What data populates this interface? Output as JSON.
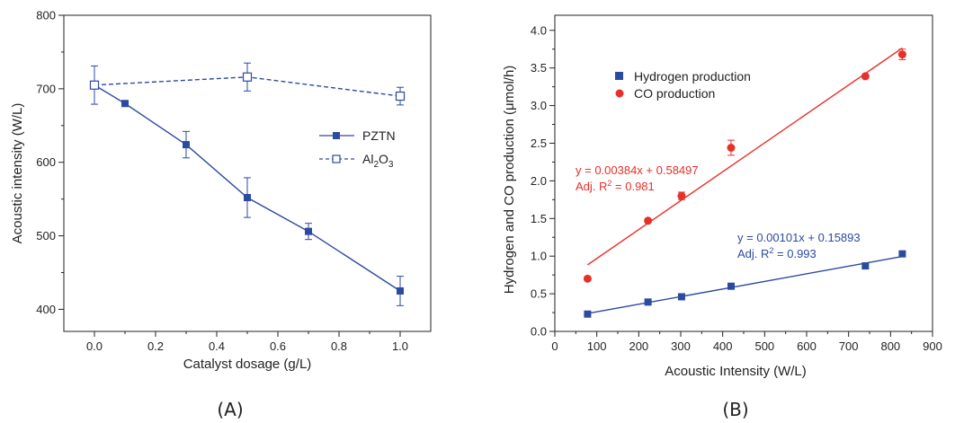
{
  "chart_data": [
    {
      "type": "line",
      "panel_label": "(A)",
      "xlabel": "Catalyst dosage (g/L)",
      "ylabel": "Acoustic intensity (W/L)",
      "xlim": [
        -0.1,
        1.1
      ],
      "ylim": [
        370,
        800
      ],
      "x_ticks": [
        "0.0",
        "0.2",
        "0.4",
        "0.6",
        "0.8",
        "1.0"
      ],
      "y_ticks": [
        "400",
        "500",
        "600",
        "700",
        "800"
      ],
      "legend_position": "right-middle",
      "series": [
        {
          "name": "PZTN",
          "color": "#2c4aa0",
          "line_style": "solid",
          "marker": "filled-square",
          "x": [
            0.0,
            0.1,
            0.3,
            0.5,
            0.7,
            1.0
          ],
          "y": [
            705,
            680,
            624,
            552,
            506,
            425
          ],
          "err": [
            0,
            0,
            18,
            27,
            11,
            20
          ]
        },
        {
          "name": "Al",
          "name_sub": "2",
          "name_tail": "O",
          "name_sub2": "3",
          "color": "#2c4aa0",
          "line_style": "dashed",
          "marker": "open-square",
          "x": [
            0.0,
            0.5,
            1.0
          ],
          "y": [
            705,
            716,
            690
          ],
          "err": [
            26,
            19,
            12
          ]
        }
      ]
    },
    {
      "type": "scatter",
      "panel_label": "(B)",
      "xlabel": "Acoustic Intensity (W/L)",
      "ylabel": "Hydrogen and CO production (μmol/h)",
      "xlim": [
        0,
        900
      ],
      "ylim": [
        0,
        4.2
      ],
      "x_ticks": [
        "0",
        "100",
        "200",
        "300",
        "400",
        "500",
        "600",
        "700",
        "800",
        "900"
      ],
      "y_ticks": [
        "0.0",
        "0.5",
        "1.0",
        "1.5",
        "2.0",
        "2.5",
        "3.0",
        "3.5",
        "4.0"
      ],
      "legend_position": "top-left",
      "series": [
        {
          "name": "Hydrogen production",
          "color": "#2c4aa0",
          "marker": "filled-square",
          "x": [
            78,
            222,
            302,
            420,
            740,
            828
          ],
          "y": [
            0.23,
            0.39,
            0.46,
            0.6,
            0.87,
            1.03
          ],
          "err": [
            0,
            0,
            0,
            0,
            0,
            0
          ],
          "fit": {
            "slope": 0.00101,
            "intercept": 0.15893,
            "x_range": [
              78,
              828
            ]
          },
          "equation": "y = 0.00101x + 0.15893",
          "r2_prefix": "Adj. R",
          "r2_sup": "2",
          "r2_value": " = 0.993"
        },
        {
          "name": "CO production",
          "color": "#e8302a",
          "marker": "filled-circle",
          "x": [
            78,
            222,
            302,
            420,
            740,
            828
          ],
          "y": [
            0.7,
            1.47,
            1.8,
            2.44,
            3.39,
            3.68
          ],
          "err": [
            0,
            0,
            0.05,
            0.1,
            0,
            0.07
          ],
          "fit": {
            "slope": 0.00384,
            "intercept": 0.58497,
            "x_range": [
              78,
              828
            ]
          },
          "equation": "y = 0.00384x + 0.58497",
          "r2_prefix": "Adj. R",
          "r2_sup": "2",
          "r2_value": " = 0.981"
        }
      ]
    }
  ]
}
